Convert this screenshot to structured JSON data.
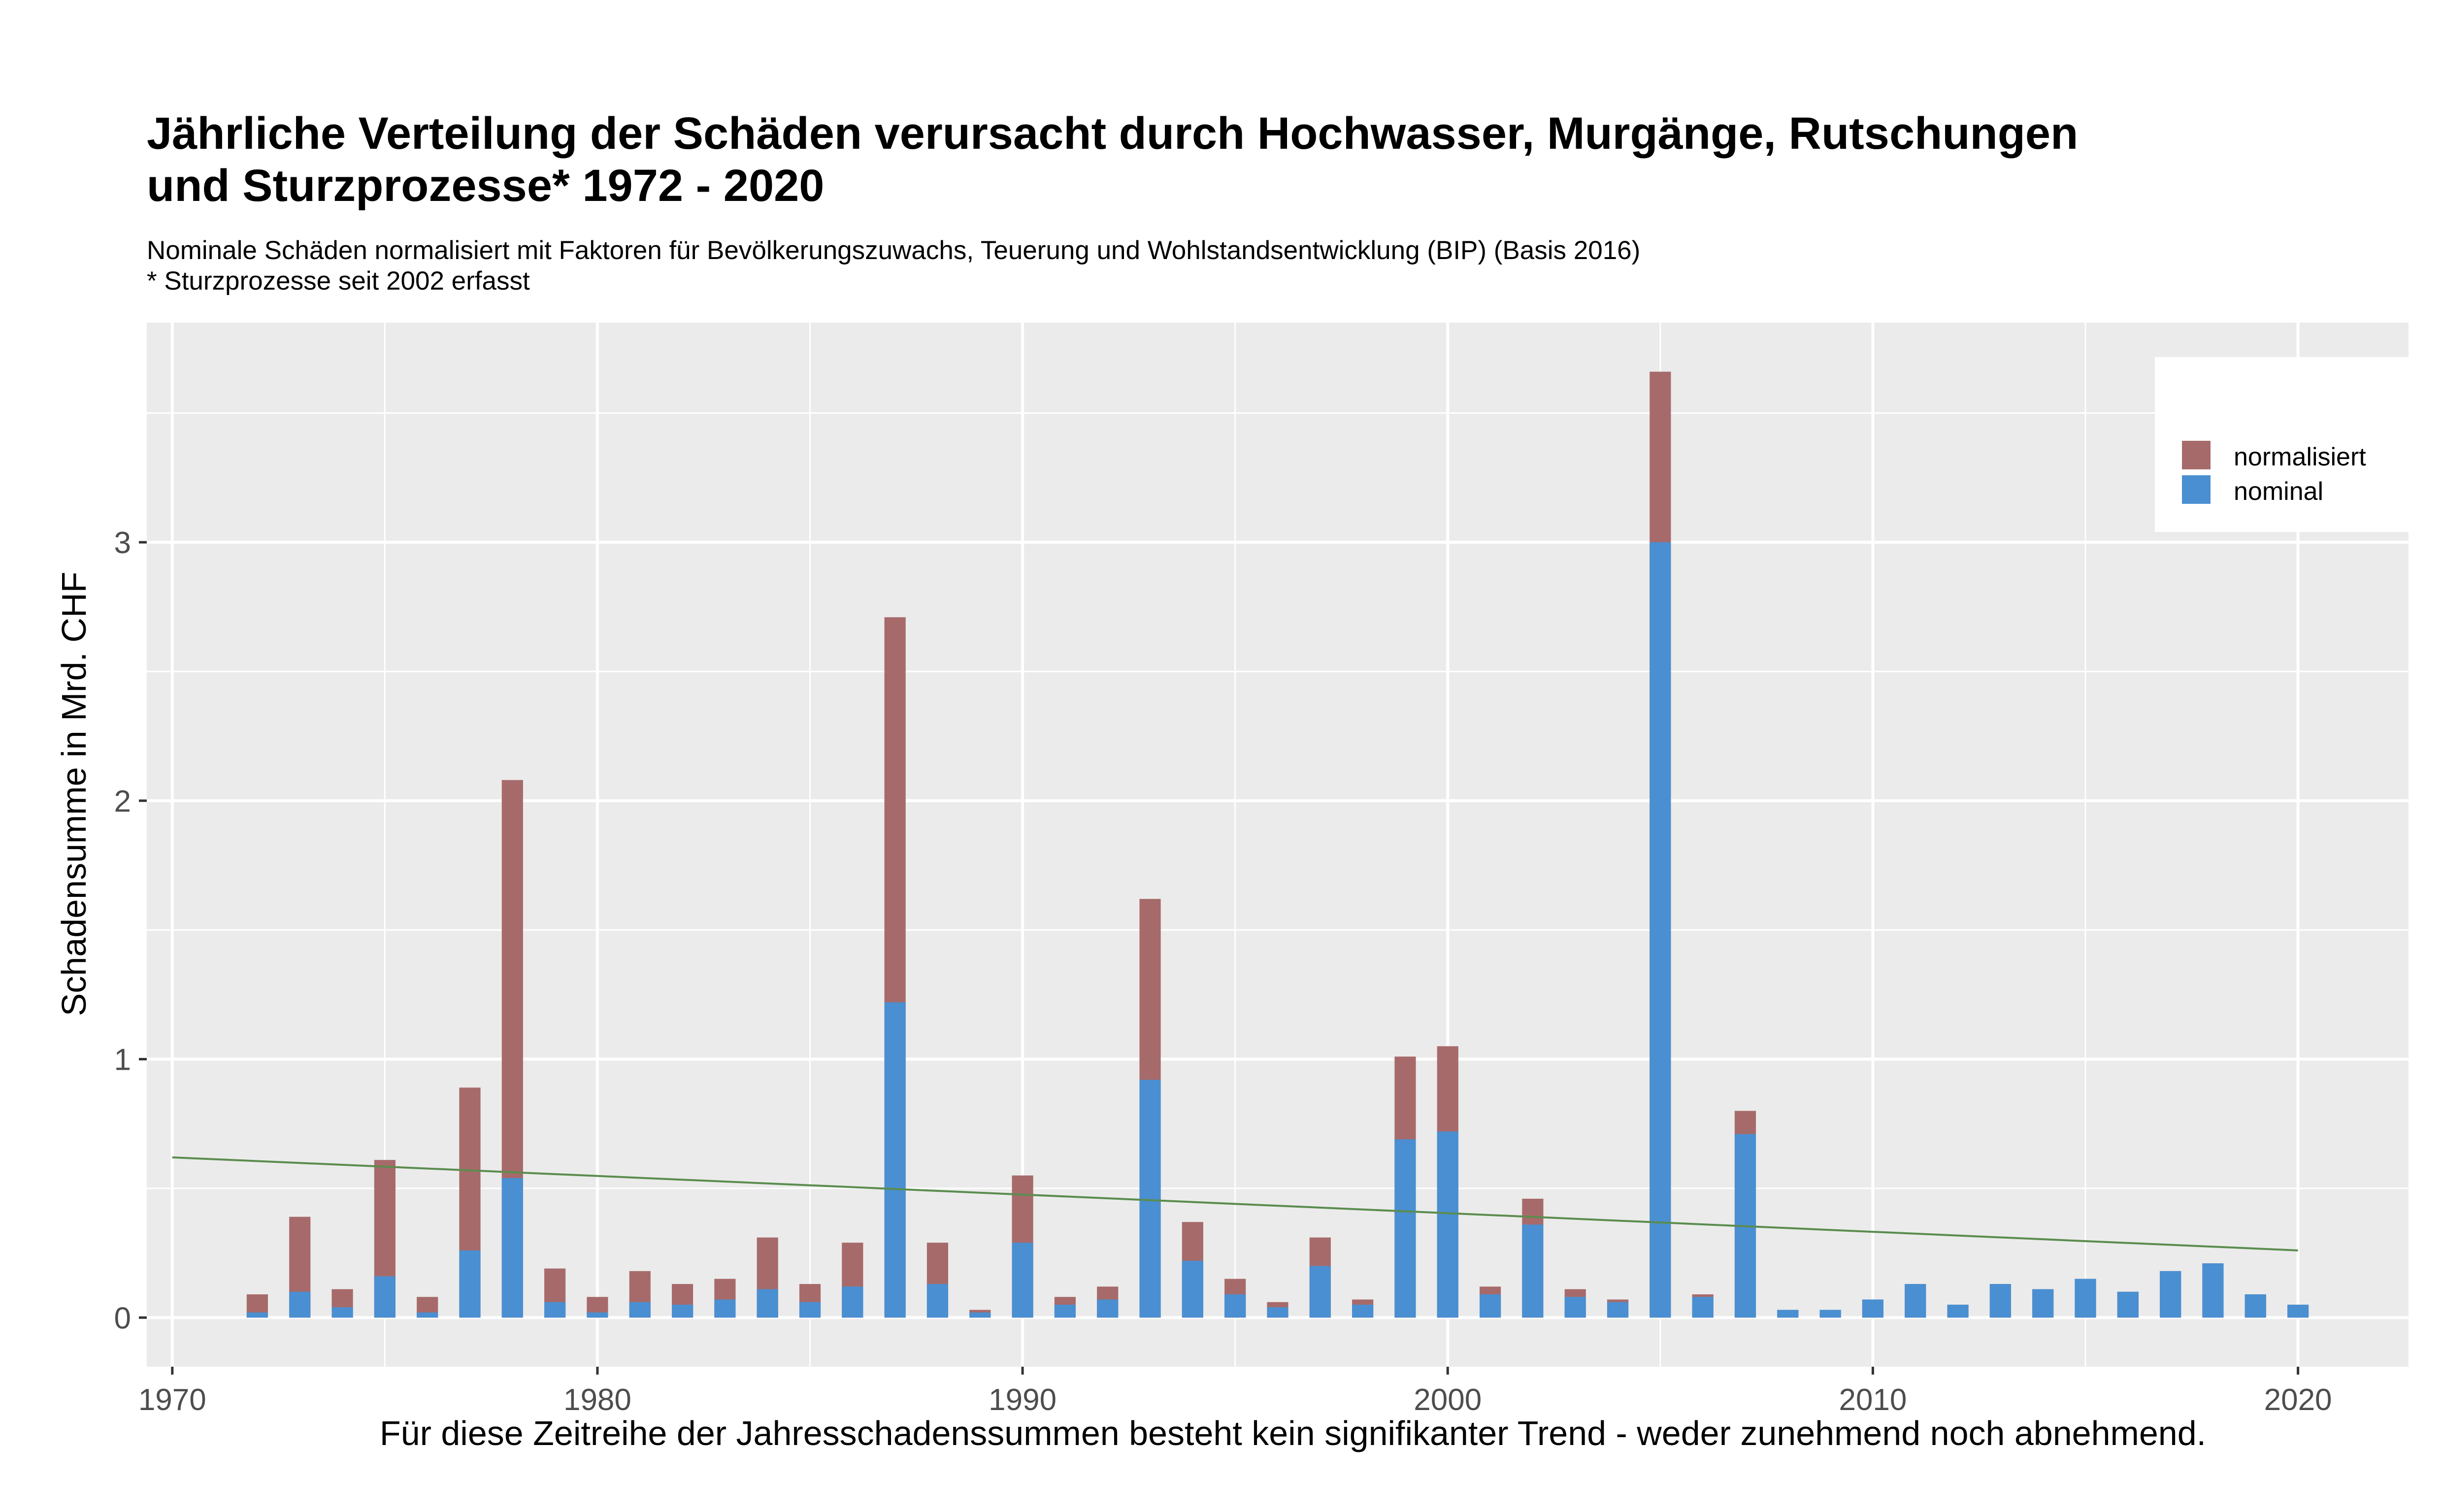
{
  "title_lines": [
    "Jährliche Verteilung der Schäden verursacht durch Hochwasser, Murgänge, Rutschungen",
    "und Sturzprozesse* 1972 - 2020"
  ],
  "subtitle_lines": [
    "Nominale Schäden normalisiert mit Faktoren für Bevölkerungszuwachs, Teuerung und Wohlstandsentwicklung (BIP) (Basis 2016)",
    "* Sturzprozesse seit 2002 erfasst"
  ],
  "colors": {
    "panel_bg": "#ebebeb",
    "grid": "#ffffff",
    "normalisiert": "#a76a6a",
    "nominal": "#4a8fd1",
    "trend": "#5b8c4e",
    "axis_text": "#4d4d4d"
  },
  "chart_data": {
    "type": "bar",
    "stacked_overlay": true,
    "xlabel": "Für diese Zeitreihe der Jahresschadenssummen besteht kein signifikanter Trend - weder zunehmend noch abnehmend.",
    "ylabel": "Schadensumme in Mrd. CHF",
    "xlim": [
      1969.4,
      2022.6
    ],
    "ylim": [
      -0.19,
      3.85
    ],
    "x_ticks": [
      1970,
      1980,
      1990,
      2000,
      2010,
      2020
    ],
    "y_ticks": [
      0,
      1,
      2,
      3
    ],
    "grid": true,
    "legend_position": "top-right",
    "years": [
      1972,
      1973,
      1974,
      1975,
      1976,
      1977,
      1978,
      1979,
      1980,
      1981,
      1982,
      1983,
      1984,
      1985,
      1986,
      1987,
      1988,
      1989,
      1990,
      1991,
      1992,
      1993,
      1994,
      1995,
      1996,
      1997,
      1998,
      1999,
      2000,
      2001,
      2002,
      2003,
      2004,
      2005,
      2006,
      2007,
      2008,
      2009,
      2010,
      2011,
      2012,
      2013,
      2014,
      2015,
      2016,
      2017,
      2018,
      2019,
      2020
    ],
    "series": [
      {
        "name": "normalisiert",
        "values": [
          0.09,
          0.39,
          0.11,
          0.61,
          0.08,
          0.89,
          2.08,
          0.19,
          0.08,
          0.18,
          0.13,
          0.15,
          0.31,
          0.13,
          0.29,
          2.71,
          0.29,
          0.03,
          0.55,
          0.08,
          0.12,
          1.62,
          0.37,
          0.15,
          0.06,
          0.31,
          0.07,
          1.01,
          1.05,
          0.12,
          0.46,
          0.11,
          0.07,
          3.66,
          0.09,
          0.8,
          0.03,
          0.03,
          0.07,
          0.13,
          0.05,
          0.13,
          0.11,
          0.15,
          0.1,
          0.18,
          0.21,
          0.09,
          0.05
        ]
      },
      {
        "name": "nominal",
        "values": [
          0.02,
          0.1,
          0.04,
          0.16,
          0.02,
          0.26,
          0.54,
          0.06,
          0.02,
          0.06,
          0.05,
          0.07,
          0.11,
          0.06,
          0.12,
          1.22,
          0.13,
          0.02,
          0.29,
          0.05,
          0.07,
          0.92,
          0.22,
          0.09,
          0.04,
          0.2,
          0.05,
          0.69,
          0.72,
          0.09,
          0.36,
          0.08,
          0.06,
          3.0,
          0.08,
          0.71,
          0.03,
          0.03,
          0.07,
          0.13,
          0.05,
          0.13,
          0.11,
          0.15,
          0.1,
          0.18,
          0.21,
          0.09,
          0.05
        ]
      }
    ],
    "trend": {
      "x": [
        1970,
        2020
      ],
      "y": [
        0.62,
        0.26
      ]
    }
  }
}
